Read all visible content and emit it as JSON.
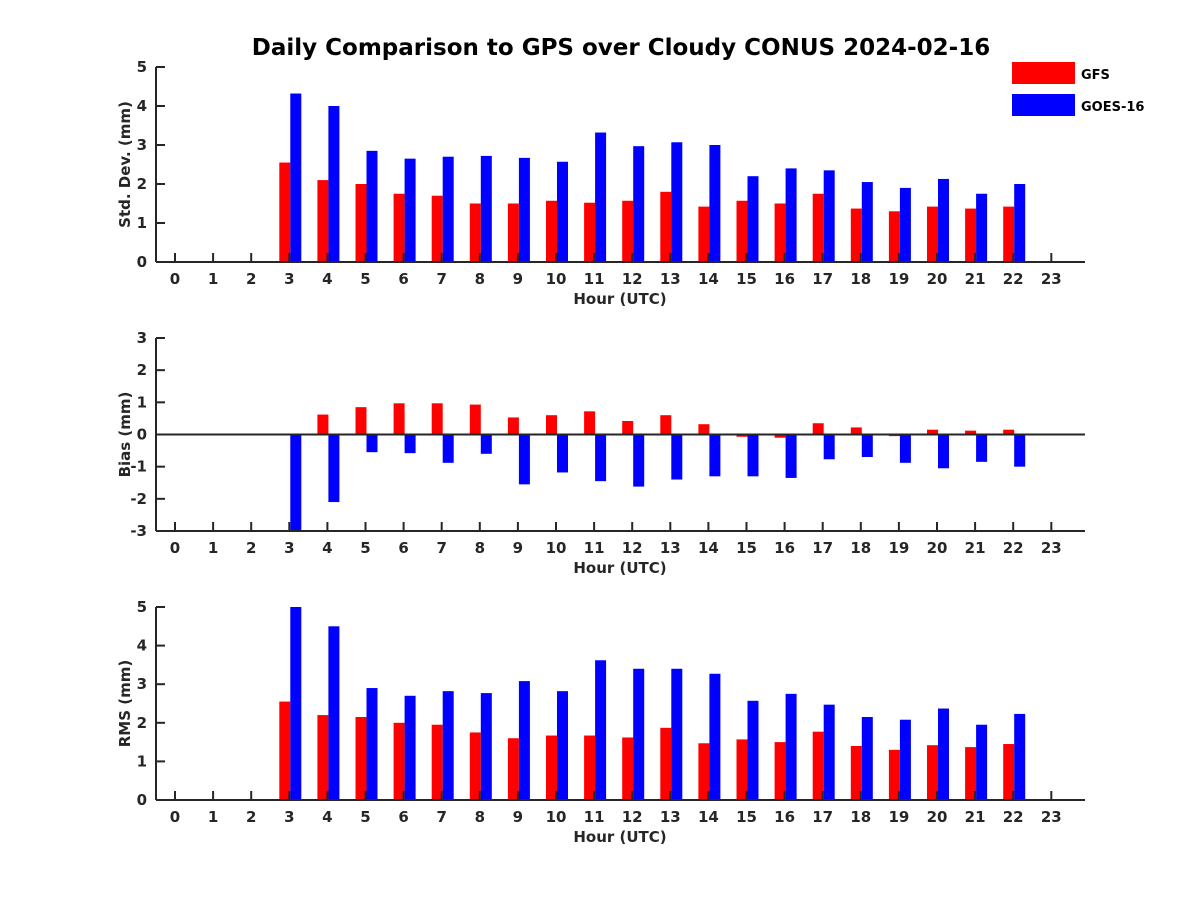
{
  "chart_data": {
    "title": "Daily Comparison to GPS over Cloudy CONUS 2024-02-16",
    "legend": {
      "placement": "top-right",
      "entries": [
        {
          "name": "GFS",
          "color": "#ff0000"
        },
        {
          "name": "GOES-16",
          "color": "#0000ff"
        }
      ]
    },
    "panels": [
      {
        "type": "bar",
        "ylabel": "Std. Dev. (mm)",
        "xlabel": "Hour (UTC)",
        "ylim": [
          0,
          5
        ],
        "yticks": [
          0,
          1,
          2,
          3,
          4,
          5
        ],
        "categories": [
          "0",
          "1",
          "2",
          "3",
          "4",
          "5",
          "6",
          "7",
          "8",
          "9",
          "10",
          "11",
          "12",
          "13",
          "14",
          "15",
          "16",
          "17",
          "18",
          "19",
          "20",
          "21",
          "22",
          "23"
        ],
        "series": [
          {
            "name": "GFS",
            "color": "#ff0000",
            "values": [
              null,
              null,
              null,
              2.55,
              2.1,
              2.0,
              1.75,
              1.7,
              1.5,
              1.5,
              1.57,
              1.52,
              1.57,
              1.8,
              1.42,
              1.57,
              1.5,
              1.75,
              1.37,
              1.3,
              1.42,
              1.37,
              1.42,
              null
            ]
          },
          {
            "name": "GOES-16",
            "color": "#0000ff",
            "values": [
              null,
              null,
              null,
              4.32,
              4.0,
              2.85,
              2.65,
              2.7,
              2.72,
              2.67,
              2.57,
              3.32,
              2.97,
              3.07,
              3.0,
              2.2,
              2.4,
              2.35,
              2.05,
              1.9,
              2.13,
              1.75,
              2.0,
              null
            ]
          }
        ]
      },
      {
        "type": "bar",
        "ylabel": "Bias (mm)",
        "xlabel": "Hour (UTC)",
        "ylim": [
          -3,
          3
        ],
        "yticks": [
          -3,
          -2,
          -1,
          0,
          1,
          2,
          3
        ],
        "zero_line": true,
        "categories": [
          "0",
          "1",
          "2",
          "3",
          "4",
          "5",
          "6",
          "7",
          "8",
          "9",
          "10",
          "11",
          "12",
          "13",
          "14",
          "15",
          "16",
          "17",
          "18",
          "19",
          "20",
          "21",
          "22",
          "23"
        ],
        "series": [
          {
            "name": "GFS",
            "color": "#ff0000",
            "values": [
              null,
              null,
              null,
              0.03,
              0.62,
              0.85,
              0.97,
              0.97,
              0.93,
              0.53,
              0.6,
              0.72,
              0.42,
              0.6,
              0.32,
              -0.07,
              -0.1,
              0.35,
              0.22,
              -0.05,
              0.15,
              0.12,
              0.15,
              null
            ]
          },
          {
            "name": "GOES-16",
            "color": "#0000ff",
            "values": [
              null,
              null,
              null,
              -3.0,
              -2.1,
              -0.55,
              -0.58,
              -0.88,
              -0.6,
              -1.55,
              -1.18,
              -1.45,
              -1.62,
              -1.4,
              -1.3,
              -1.3,
              -1.35,
              -0.77,
              -0.7,
              -0.88,
              -1.05,
              -0.85,
              -1.0,
              null
            ]
          }
        ]
      },
      {
        "type": "bar",
        "ylabel": "RMS (mm)",
        "xlabel": "Hour (UTC)",
        "ylim": [
          0,
          5
        ],
        "yticks": [
          0,
          1,
          2,
          3,
          4,
          5
        ],
        "categories": [
          "0",
          "1",
          "2",
          "3",
          "4",
          "5",
          "6",
          "7",
          "8",
          "9",
          "10",
          "11",
          "12",
          "13",
          "14",
          "15",
          "16",
          "17",
          "18",
          "19",
          "20",
          "21",
          "22",
          "23"
        ],
        "series": [
          {
            "name": "GFS",
            "color": "#ff0000",
            "values": [
              null,
              null,
              null,
              2.55,
              2.2,
              2.15,
              2.0,
              1.95,
              1.75,
              1.6,
              1.67,
              1.67,
              1.62,
              1.87,
              1.47,
              1.57,
              1.5,
              1.77,
              1.4,
              1.3,
              1.42,
              1.37,
              1.45,
              null
            ]
          },
          {
            "name": "GOES-16",
            "color": "#0000ff",
            "values": [
              null,
              null,
              null,
              5.0,
              4.5,
              2.9,
              2.7,
              2.82,
              2.77,
              3.08,
              2.82,
              3.62,
              3.4,
              3.4,
              3.27,
              2.57,
              2.75,
              2.47,
              2.15,
              2.08,
              2.37,
              1.95,
              2.23,
              null
            ]
          }
        ]
      }
    ]
  }
}
